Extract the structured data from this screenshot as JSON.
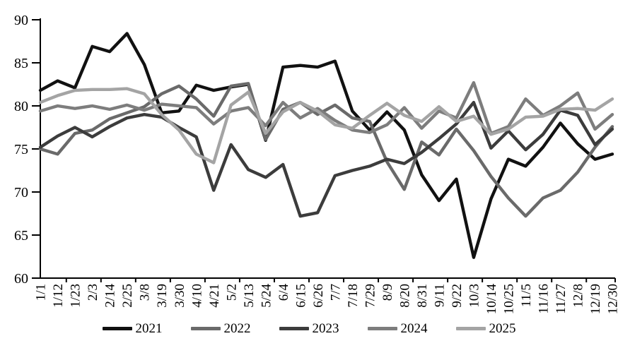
{
  "chart_data": {
    "type": "line",
    "title": "",
    "xlabel": "",
    "ylabel": "",
    "ylim": [
      60,
      90
    ],
    "ytick_step": 5,
    "y_ticks": [
      60,
      65,
      70,
      75,
      80,
      85,
      90
    ],
    "grid": false,
    "legend_position": "bottom",
    "x_label_rotation": -90,
    "categories": [
      "1/1",
      "1/12",
      "1/23",
      "2/3",
      "2/14",
      "2/25",
      "3/8",
      "3/19",
      "3/30",
      "4/10",
      "4/21",
      "5/2",
      "5/13",
      "5/24",
      "6/4",
      "6/15",
      "6/26",
      "7/7",
      "7/18",
      "7/29",
      "8/9",
      "8/20",
      "8/31",
      "9/11",
      "9/22",
      "10/3",
      "10/14",
      "10/25",
      "11/5",
      "11/16",
      "11/27",
      "12/8",
      "12/19",
      "12/30"
    ],
    "series": [
      {
        "name": "2021",
        "color": "#111111",
        "values": [
          81.8,
          82.9,
          82.1,
          86.9,
          86.3,
          88.4,
          84.8,
          79.2,
          79.4,
          82.4,
          81.8,
          82.2,
          82.5,
          76.0,
          84.5,
          84.7,
          84.5,
          85.2,
          79.4,
          77.2,
          79.3,
          77.2,
          72.0,
          69.0,
          71.5,
          62.4,
          69.2,
          73.8,
          73.0,
          75.2,
          78.0,
          75.6,
          73.8,
          74.4
        ]
      },
      {
        "name": "2022",
        "color": "#6a6a6a",
        "values": [
          75.0,
          74.4,
          76.8,
          77.2,
          78.5,
          79.2,
          79.9,
          81.4,
          82.3,
          80.8,
          78.8,
          82.3,
          82.6,
          76.1,
          79.6,
          80.4,
          79.0,
          80.1,
          78.6,
          78.2,
          73.5,
          70.3,
          75.8,
          74.3,
          77.3,
          74.8,
          71.8,
          69.3,
          67.2,
          69.3,
          70.2,
          72.3,
          75.2,
          77.6
        ]
      },
      {
        "name": "2023",
        "color": "#3c3c3c",
        "values": [
          75.2,
          76.5,
          77.5,
          76.4,
          77.6,
          78.6,
          79.0,
          78.7,
          77.5,
          76.4,
          70.2,
          75.5,
          72.6,
          71.7,
          73.2,
          67.2,
          67.6,
          71.9,
          72.5,
          73.0,
          73.8,
          73.3,
          74.6,
          76.2,
          77.9,
          80.4,
          75.1,
          77.1,
          74.9,
          76.7,
          79.5,
          78.9,
          75.5,
          77.3
        ]
      },
      {
        "name": "2024",
        "color": "#7d7d7d",
        "values": [
          79.4,
          80.0,
          79.7,
          80.0,
          79.6,
          80.1,
          79.5,
          80.2,
          80.0,
          79.8,
          77.9,
          79.4,
          79.8,
          77.7,
          80.4,
          78.6,
          79.7,
          78.3,
          77.2,
          76.9,
          77.8,
          79.8,
          77.4,
          79.4,
          78.6,
          82.7,
          76.8,
          77.6,
          80.8,
          78.9,
          80.0,
          81.5,
          77.3,
          79.0
        ]
      },
      {
        "name": "2025",
        "color": "#a4a4a4",
        "values": [
          80.4,
          81.2,
          81.8,
          81.9,
          81.9,
          82.0,
          81.4,
          79.0,
          77.2,
          74.4,
          73.4,
          80.1,
          81.6,
          76.8,
          79.3,
          80.4,
          79.4,
          77.8,
          77.4,
          78.9,
          80.3,
          78.9,
          78.2,
          79.9,
          78.2,
          78.8,
          76.7,
          77.3,
          78.7,
          78.8,
          79.6,
          79.7,
          79.5,
          80.8
        ]
      }
    ]
  },
  "legend": {
    "items": [
      {
        "label": "2021"
      },
      {
        "label": "2022"
      },
      {
        "label": "2023"
      },
      {
        "label": "2024"
      },
      {
        "label": "2025"
      }
    ]
  }
}
